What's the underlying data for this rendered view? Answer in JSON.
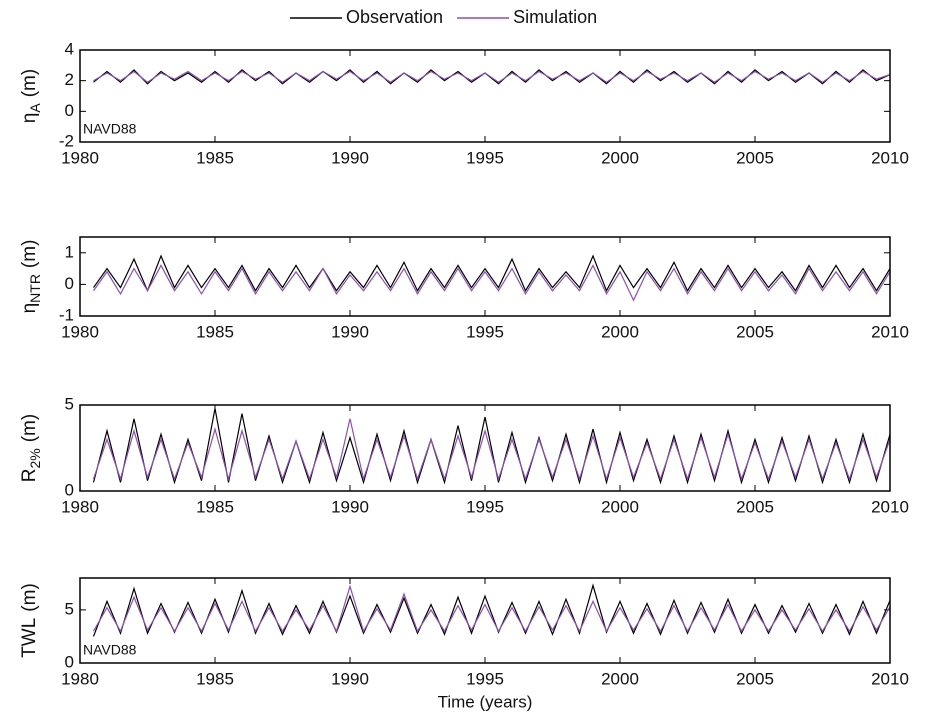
{
  "chart_data": [
    {
      "type": "line",
      "ylabel": {
        "symbol": "η",
        "subscript": "A",
        "unit": "(m)"
      },
      "annotation": "NAVD88",
      "legend": "top-center",
      "x": [
        1980.5,
        1981,
        1981.5,
        1982,
        1982.5,
        1983,
        1983.5,
        1984,
        1984.5,
        1985,
        1985.5,
        1986,
        1986.5,
        1987,
        1987.5,
        1988,
        1988.5,
        1989,
        1989.5,
        1990,
        1990.5,
        1991,
        1991.5,
        1992,
        1992.5,
        1993,
        1993.5,
        1994,
        1994.5,
        1995,
        1995.5,
        1996,
        1996.5,
        1997,
        1997.5,
        1998,
        1998.5,
        1999,
        1999.5,
        2000,
        2000.5,
        2001,
        2001.5,
        2002,
        2002.5,
        2003,
        2003.5,
        2004,
        2004.5,
        2005,
        2005.5,
        2006,
        2006.5,
        2007,
        2007.5,
        2008,
        2008.5,
        2009,
        2009.5,
        2010
      ],
      "series": [
        {
          "name": "Observation",
          "color": "#000000",
          "values": [
            1.9,
            2.6,
            1.9,
            2.7,
            1.8,
            2.6,
            2.0,
            2.5,
            1.9,
            2.6,
            1.9,
            2.7,
            2.0,
            2.6,
            1.8,
            2.5,
            1.9,
            2.6,
            2.0,
            2.7,
            1.9,
            2.6,
            1.8,
            2.5,
            1.9,
            2.7,
            2.0,
            2.6,
            1.9,
            2.5,
            1.8,
            2.6,
            1.9,
            2.7,
            2.0,
            2.6,
            1.9,
            2.5,
            1.8,
            2.6,
            1.9,
            2.7,
            2.0,
            2.6,
            1.9,
            2.5,
            1.8,
            2.6,
            1.9,
            2.7,
            2.0,
            2.6,
            1.9,
            2.5,
            1.8,
            2.6,
            1.9,
            2.7,
            2.0,
            2.4
          ]
        },
        {
          "name": "Simulation",
          "color": "#8e4fb4",
          "values": [
            2.0,
            2.5,
            2.0,
            2.6,
            1.9,
            2.5,
            2.1,
            2.6,
            2.0,
            2.5,
            2.0,
            2.6,
            2.1,
            2.5,
            1.9,
            2.5,
            2.0,
            2.6,
            2.1,
            2.6,
            2.0,
            2.5,
            1.9,
            2.5,
            2.0,
            2.6,
            2.1,
            2.5,
            2.0,
            2.5,
            1.9,
            2.5,
            2.0,
            2.6,
            2.1,
            2.5,
            2.0,
            2.5,
            1.9,
            2.5,
            2.0,
            2.6,
            2.1,
            2.5,
            2.0,
            2.5,
            1.9,
            2.5,
            2.0,
            2.6,
            2.1,
            2.5,
            2.0,
            2.5,
            1.9,
            2.5,
            2.0,
            2.6,
            2.1,
            2.4
          ]
        }
      ],
      "xlim": [
        1980,
        2010
      ],
      "xticks": [
        1980,
        1985,
        1990,
        1995,
        2000,
        2005,
        2010
      ],
      "ylim": [
        -2,
        4
      ],
      "yticks": [
        -2,
        0,
        2,
        4
      ]
    },
    {
      "type": "line",
      "ylabel": {
        "symbol": "η",
        "subscript": "NTR",
        "unit": "(m)"
      },
      "x": [
        1980.5,
        1981,
        1981.5,
        1982,
        1982.5,
        1983,
        1983.5,
        1984,
        1984.5,
        1985,
        1985.5,
        1986,
        1986.5,
        1987,
        1987.5,
        1988,
        1988.5,
        1989,
        1989.5,
        1990,
        1990.5,
        1991,
        1991.5,
        1992,
        1992.5,
        1993,
        1993.5,
        1994,
        1994.5,
        1995,
        1995.5,
        1996,
        1996.5,
        1997,
        1997.5,
        1998,
        1998.5,
        1999,
        1999.5,
        2000,
        2000.5,
        2001,
        2001.5,
        2002,
        2002.5,
        2003,
        2003.5,
        2004,
        2004.5,
        2005,
        2005.5,
        2006,
        2006.5,
        2007,
        2007.5,
        2008,
        2008.5,
        2009,
        2009.5,
        2010
      ],
      "series": [
        {
          "color": "#000000",
          "values": [
            -0.1,
            0.5,
            -0.1,
            0.8,
            -0.2,
            0.9,
            -0.1,
            0.6,
            -0.1,
            0.5,
            -0.1,
            0.6,
            -0.2,
            0.5,
            -0.1,
            0.6,
            -0.1,
            0.5,
            -0.2,
            0.4,
            -0.1,
            0.6,
            -0.1,
            0.7,
            -0.2,
            0.5,
            -0.1,
            0.6,
            -0.1,
            0.5,
            -0.1,
            0.8,
            -0.2,
            0.5,
            -0.1,
            0.4,
            -0.1,
            0.9,
            -0.2,
            0.6,
            -0.1,
            0.5,
            -0.1,
            0.7,
            -0.2,
            0.5,
            -0.1,
            0.6,
            -0.1,
            0.5,
            -0.1,
            0.4,
            -0.2,
            0.6,
            -0.1,
            0.6,
            -0.1,
            0.5,
            -0.2,
            0.5
          ]
        },
        {
          "color": "#8e4fb4",
          "values": [
            -0.2,
            0.4,
            -0.3,
            0.5,
            -0.2,
            0.6,
            -0.2,
            0.4,
            -0.3,
            0.4,
            -0.2,
            0.5,
            -0.3,
            0.4,
            -0.2,
            0.4,
            -0.2,
            0.5,
            -0.3,
            0.3,
            -0.2,
            0.4,
            -0.2,
            0.5,
            -0.3,
            0.4,
            -0.2,
            0.5,
            -0.2,
            0.4,
            -0.2,
            0.5,
            -0.3,
            0.4,
            -0.2,
            0.3,
            -0.2,
            0.6,
            -0.3,
            0.4,
            -0.5,
            0.4,
            -0.2,
            0.5,
            -0.3,
            0.4,
            -0.2,
            0.5,
            -0.2,
            0.4,
            -0.2,
            0.3,
            -0.3,
            0.5,
            -0.2,
            0.4,
            -0.2,
            0.4,
            -0.3,
            0.4
          ]
        }
      ],
      "xlim": [
        1980,
        2010
      ],
      "xticks": [
        1980,
        1985,
        1990,
        1995,
        2000,
        2005,
        2010
      ],
      "ylim": [
        -1,
        1.5
      ],
      "yticks": [
        -1,
        0,
        1
      ]
    },
    {
      "type": "line",
      "ylabel": {
        "symbol": "R",
        "subscript": "2%",
        "unit": "(m)"
      },
      "x": [
        1980.5,
        1981,
        1981.5,
        1982,
        1982.5,
        1983,
        1983.5,
        1984,
        1984.5,
        1985,
        1985.5,
        1986,
        1986.5,
        1987,
        1987.5,
        1988,
        1988.5,
        1989,
        1989.5,
        1990,
        1990.5,
        1991,
        1991.5,
        1992,
        1992.5,
        1993,
        1993.5,
        1994,
        1994.5,
        1995,
        1995.5,
        1996,
        1996.5,
        1997,
        1997.5,
        1998,
        1998.5,
        1999,
        1999.5,
        2000,
        2000.5,
        2001,
        2001.5,
        2002,
        2002.5,
        2003,
        2003.5,
        2004,
        2004.5,
        2005,
        2005.5,
        2006,
        2006.5,
        2007,
        2007.5,
        2008,
        2008.5,
        2009,
        2009.5,
        2010
      ],
      "series": [
        {
          "color": "#000000",
          "values": [
            0.5,
            3.5,
            0.5,
            4.2,
            0.6,
            3.3,
            0.5,
            3.0,
            0.6,
            4.8,
            0.5,
            4.5,
            0.6,
            3.2,
            0.5,
            2.9,
            0.5,
            3.4,
            0.6,
            3.1,
            0.5,
            3.3,
            0.6,
            3.5,
            0.5,
            3.0,
            0.5,
            3.8,
            0.6,
            4.3,
            0.5,
            3.4,
            0.5,
            3.1,
            0.6,
            3.3,
            0.5,
            3.6,
            0.5,
            3.4,
            0.6,
            3.0,
            0.5,
            3.2,
            0.5,
            3.3,
            0.6,
            3.5,
            0.5,
            3.0,
            0.5,
            3.1,
            0.6,
            3.2,
            0.5,
            3.0,
            0.5,
            3.3,
            0.6,
            3.3
          ]
        },
        {
          "color": "#8e4fb4",
          "values": [
            0.7,
            3.0,
            0.7,
            3.5,
            0.8,
            3.0,
            0.7,
            2.8,
            0.8,
            3.6,
            0.7,
            3.5,
            0.8,
            3.0,
            0.7,
            2.9,
            0.7,
            3.0,
            0.8,
            4.2,
            0.7,
            3.0,
            0.8,
            3.2,
            0.7,
            3.0,
            0.7,
            3.2,
            0.8,
            3.5,
            0.7,
            3.0,
            0.7,
            3.0,
            0.8,
            3.0,
            0.7,
            3.2,
            0.7,
            3.1,
            0.8,
            2.8,
            0.7,
            3.0,
            0.7,
            3.1,
            0.8,
            3.3,
            0.7,
            2.8,
            0.7,
            2.9,
            0.8,
            3.0,
            0.7,
            2.8,
            0.7,
            3.0,
            0.8,
            3.0
          ]
        }
      ],
      "xlim": [
        1980,
        2010
      ],
      "xticks": [
        1980,
        1985,
        1990,
        1995,
        2000,
        2005,
        2010
      ],
      "ylim": [
        0,
        5
      ],
      "yticks": [
        0,
        5
      ]
    },
    {
      "type": "line",
      "ylabel": {
        "symbol": "TWL",
        "unit": "(m)"
      },
      "annotation": "NAVD88",
      "xlabel": "Time (years)",
      "x": [
        1980.5,
        1981,
        1981.5,
        1982,
        1982.5,
        1983,
        1983.5,
        1984,
        1984.5,
        1985,
        1985.5,
        1986,
        1986.5,
        1987,
        1987.5,
        1988,
        1988.5,
        1989,
        1989.5,
        1990,
        1990.5,
        1991,
        1991.5,
        1992,
        1992.5,
        1993,
        1993.5,
        1994,
        1994.5,
        1995,
        1995.5,
        1996,
        1996.5,
        1997,
        1997.5,
        1998,
        1998.5,
        1999,
        1999.5,
        2000,
        2000.5,
        2001,
        2001.5,
        2002,
        2002.5,
        2003,
        2003.5,
        2004,
        2004.5,
        2005,
        2005.5,
        2006,
        2006.5,
        2007,
        2007.5,
        2008,
        2008.5,
        2009,
        2009.5,
        2010
      ],
      "series": [
        {
          "color": "#000000",
          "values": [
            2.5,
            5.8,
            2.8,
            7.0,
            2.8,
            5.6,
            2.9,
            5.7,
            2.8,
            6.0,
            2.9,
            6.8,
            2.8,
            5.6,
            2.7,
            5.4,
            2.8,
            5.8,
            2.9,
            6.3,
            2.8,
            5.5,
            2.9,
            6.1,
            2.8,
            5.5,
            2.7,
            6.2,
            2.8,
            6.3,
            2.9,
            5.7,
            2.8,
            5.8,
            2.7,
            6.0,
            2.8,
            7.3,
            2.9,
            5.8,
            2.8,
            5.6,
            2.7,
            5.9,
            2.8,
            5.7,
            2.9,
            6.0,
            2.8,
            5.5,
            2.8,
            5.4,
            2.9,
            5.6,
            2.8,
            5.5,
            2.7,
            5.8,
            2.8,
            5.9
          ]
        },
        {
          "color": "#8e4fb4",
          "values": [
            3.0,
            5.2,
            3.0,
            6.2,
            3.1,
            5.2,
            3.0,
            5.2,
            3.0,
            5.6,
            3.1,
            5.8,
            3.0,
            5.2,
            3.0,
            5.0,
            3.1,
            5.4,
            3.0,
            7.2,
            3.0,
            5.1,
            3.1,
            6.5,
            3.0,
            5.0,
            3.0,
            5.4,
            3.1,
            5.5,
            3.0,
            5.2,
            3.0,
            5.3,
            3.1,
            5.4,
            3.0,
            5.8,
            3.0,
            5.2,
            3.1,
            5.1,
            3.0,
            5.4,
            3.0,
            5.2,
            3.1,
            5.5,
            3.0,
            5.0,
            3.0,
            5.0,
            3.1,
            5.1,
            3.0,
            5.0,
            3.0,
            5.3,
            3.1,
            5.3
          ]
        }
      ],
      "xlim": [
        1980,
        2010
      ],
      "xticks": [
        1980,
        1985,
        1990,
        1995,
        2000,
        2005,
        2010
      ],
      "ylim": [
        0,
        8
      ],
      "yticks": [
        0,
        5
      ]
    }
  ]
}
